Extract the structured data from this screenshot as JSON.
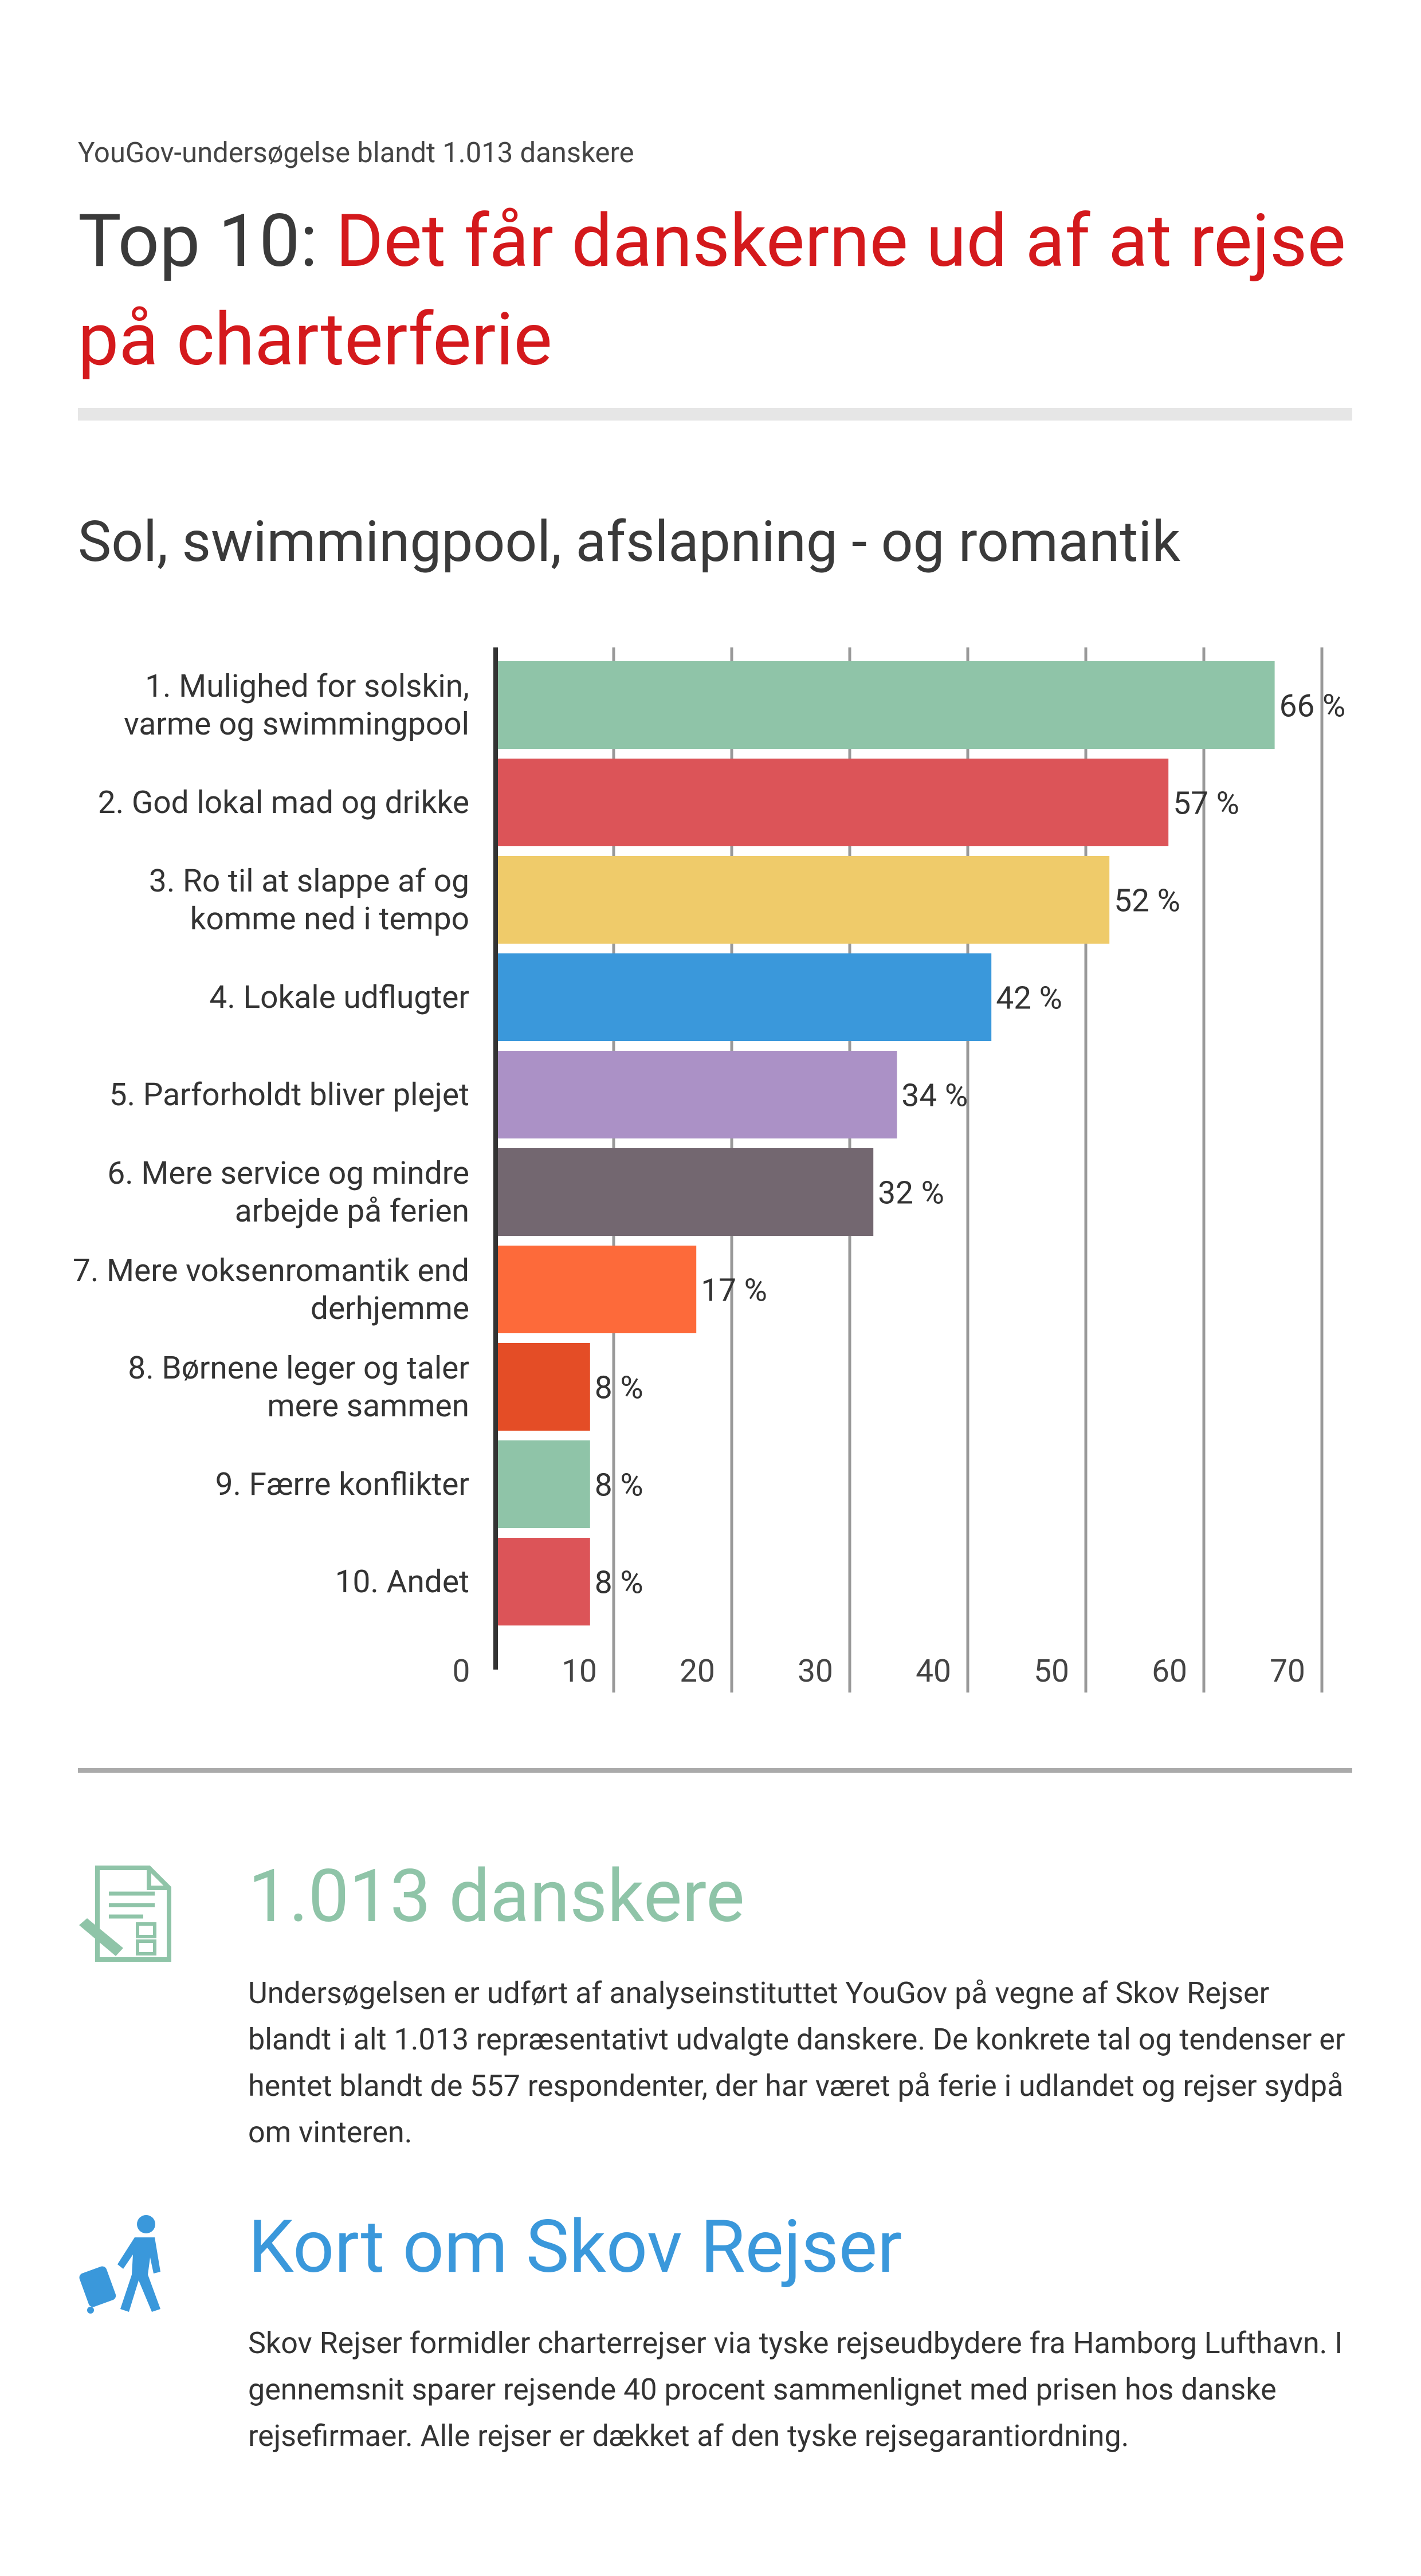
{
  "header": {
    "kicker": "YouGov-undersøgelse blandt 1.013 danskere",
    "title_prefix": "Top 10:",
    "title_highlight": "Det får danskerne ud af at rejse på charterferie"
  },
  "chart_data": {
    "type": "bar",
    "orientation": "horizontal",
    "title": "Sol, swimmingpool, afslapning - og romantik",
    "categories": [
      "1. Mulighed for solskin, varme og swimmingpool",
      "2. God lokal mad og drikke",
      "3. Ro til at slappe af og komme ned i tempo",
      "4. Lokale udflugter",
      "5. Parforholdt bliver plejet",
      "6. Mere service og mindre arbejde på ferien",
      "7. Mere voksenromantik end derhjemme",
      "8. Børnene leger og taler mere sammen",
      "9. Færre konflikter",
      "10. Andet"
    ],
    "values": [
      66,
      57,
      52,
      42,
      34,
      32,
      17,
      8,
      8,
      8
    ],
    "value_labels": [
      "66 %",
      "57 %",
      "52 %",
      "42 %",
      "34 %",
      "32 %",
      "17 %",
      "8 %",
      "8 %",
      "8 %"
    ],
    "colors": [
      "#8fc4a8",
      "#dc5458",
      "#efcb6a",
      "#3a98db",
      "#ab91c6",
      "#736770",
      "#fd6a3a",
      "#e44d26",
      "#8fc4a8",
      "#dc5458"
    ],
    "xlim": [
      0,
      70
    ],
    "xticks": [
      0,
      10,
      20,
      30,
      40,
      50,
      60,
      70
    ],
    "grid": true
  },
  "sections": [
    {
      "heading": "1.013 danskere",
      "color": "#8fc4a8",
      "body": "Undersøgelsen er udført af analyseinstituttet YouGov på vegne af Skov Rejser blandt i alt 1.013 repræsentativt udvalgte danskere. De konkrete tal og tendenser er hentet blandt de 557 respondenter, der har været på ferie i udlandet og rejser sydpå om vinteren."
    },
    {
      "heading": "Kort om Skov Rejser",
      "color": "#3a98db",
      "body": "Skov Rejser formidler charterrejser via tyske rejseudbydere fra Hamborg Lufthavn. I gennemsnit sparer rejsende 40 procent sammenlignet med prisen hos danske rejsefirmaer. Alle rejser er dækket af den tyske rejsegarantiordning."
    }
  ]
}
